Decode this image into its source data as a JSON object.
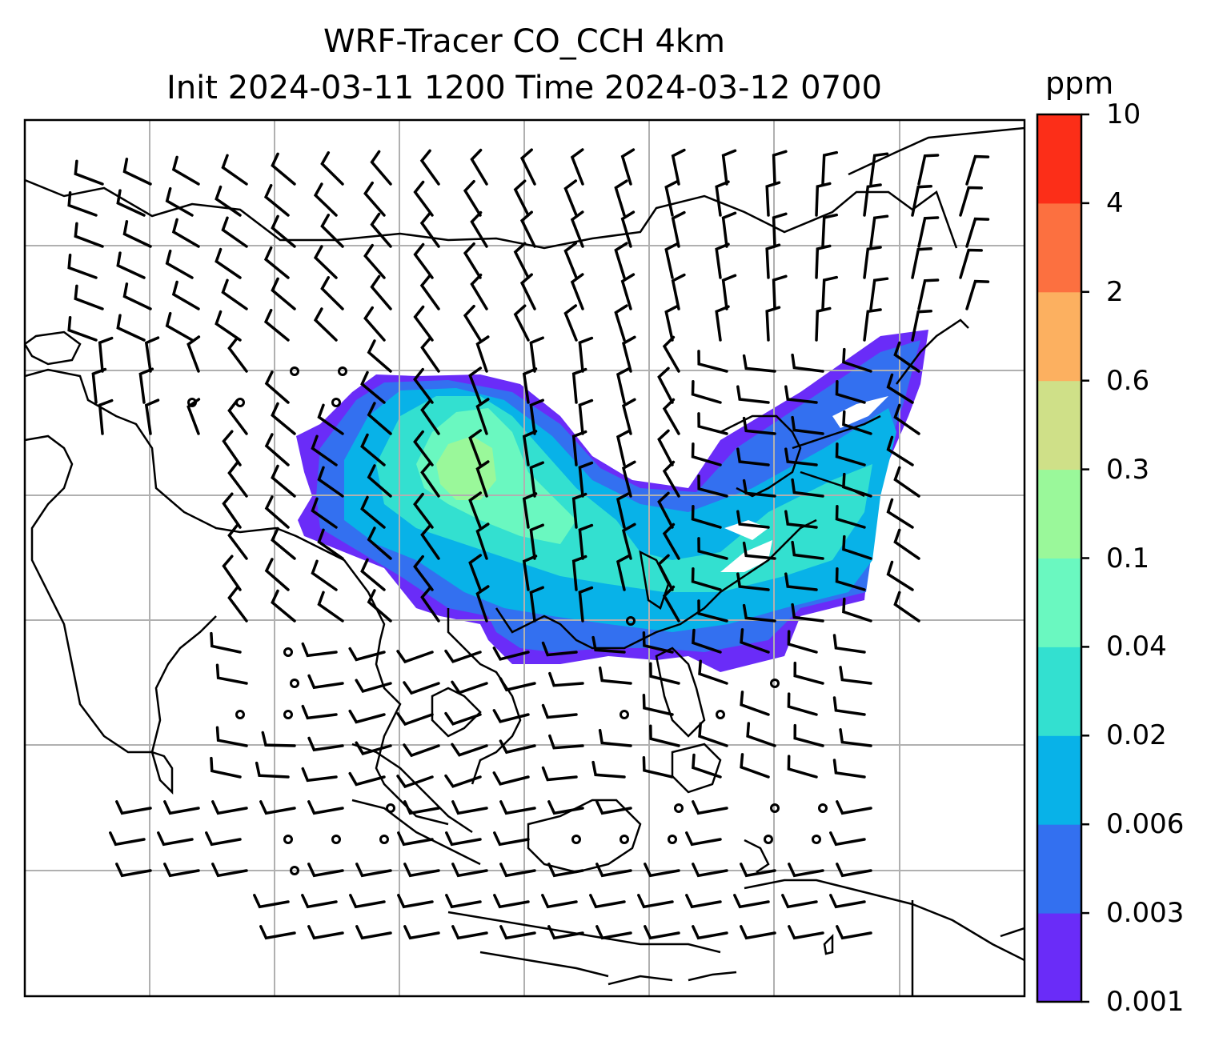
{
  "title": {
    "line1": "WRF-Tracer CO_CCH 4km",
    "line2": "Init 2024-03-11 1200 Time 2024-03-12 0700"
  },
  "colorbar": {
    "unit": "ppm",
    "ticks": [
      "0.001",
      "0.003",
      "0.006",
      "0.02",
      "0.04",
      "0.1",
      "0.3",
      "0.6",
      "2",
      "4",
      "10"
    ],
    "colors": [
      "#6a2cf8",
      "#3370f0",
      "#08b2e8",
      "#33e0d0",
      "#6af8c0",
      "#9af89a",
      "#cfe088",
      "#fcb060",
      "#fc7040",
      "#fc2e18"
    ]
  },
  "map": {
    "frame_color": "#000000",
    "gridline_color": "#b0b0b0",
    "coastline_color": "#000000",
    "wind_barb_color": "#000000",
    "no_data_color": "#ffffff"
  }
}
